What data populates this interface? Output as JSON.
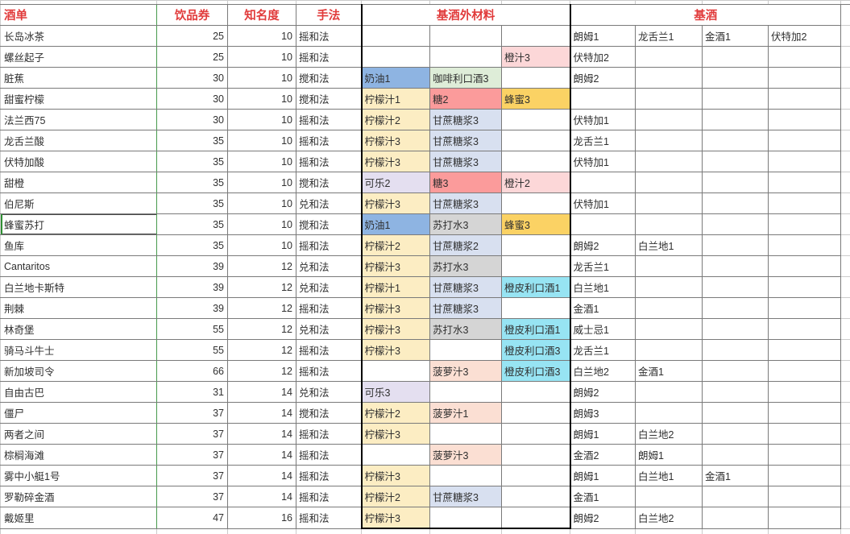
{
  "header": {
    "menu": "酒单",
    "ticket": "饮品券",
    "fame": "知名度",
    "method": "手法",
    "materials": "基酒外材料",
    "base": "基酒"
  },
  "styles": {
    "header_text_color": "#E13B3B",
    "grid_color": "#7a7a7a",
    "sheet_grid_color": "#cbcbcb",
    "green_divider_color": "#469A4C",
    "thick_border_color": "#000000",
    "selection_color": "#2F8F33"
  },
  "material_colors": {
    "lemon_juice": "#FCEDC3",
    "sugar": "#FB9B9B",
    "honey": "#FBD264",
    "cream": "#8EB4E2",
    "coffee_liqueur": "#DEEDD8",
    "orange_juice": "#FCD7D8",
    "cane_syrup": "#D8E0F0",
    "cola": "#E4DFF0",
    "soda_water": "#D5D5D5",
    "orange_liqueur": "#97E4F3",
    "pineapple_juice": "#FBDFD3"
  },
  "selection": {
    "row_index": 9,
    "column": "name"
  },
  "rows": [
    {
      "name": "长岛冰茶",
      "ticket": "25",
      "fame": "10",
      "method": "摇和法",
      "materials": [
        null,
        null,
        null
      ],
      "base": [
        "朗姆1",
        "龙舌兰1",
        "金酒1",
        "伏特加2"
      ]
    },
    {
      "name": "螺丝起子",
      "ticket": "25",
      "fame": "10",
      "method": "摇和法",
      "materials": [
        null,
        null,
        {
          "t": "橙汁3",
          "k": "orange_juice"
        }
      ],
      "base": [
        "伏特加2",
        "",
        "",
        ""
      ]
    },
    {
      "name": "脏蕉",
      "ticket": "30",
      "fame": "10",
      "method": "搅和法",
      "materials": [
        {
          "t": "奶油1",
          "k": "cream"
        },
        {
          "t": "咖啡利口酒3",
          "k": "coffee_liqueur"
        },
        null
      ],
      "base": [
        "朗姆2",
        "",
        "",
        ""
      ]
    },
    {
      "name": "甜蜜柠檬",
      "ticket": "30",
      "fame": "10",
      "method": "搅和法",
      "materials": [
        {
          "t": "柠檬汁1",
          "k": "lemon_juice"
        },
        {
          "t": "糖2",
          "k": "sugar"
        },
        {
          "t": "蜂蜜3",
          "k": "honey"
        }
      ],
      "base": [
        "",
        "",
        "",
        ""
      ]
    },
    {
      "name": "法兰西75",
      "ticket": "30",
      "fame": "10",
      "method": "摇和法",
      "materials": [
        {
          "t": "柠檬汁2",
          "k": "lemon_juice"
        },
        {
          "t": "甘蔗糖浆3",
          "k": "cane_syrup"
        },
        null
      ],
      "base": [
        "伏特加1",
        "",
        "",
        ""
      ]
    },
    {
      "name": "龙舌兰酸",
      "ticket": "35",
      "fame": "10",
      "method": "摇和法",
      "materials": [
        {
          "t": "柠檬汁3",
          "k": "lemon_juice"
        },
        {
          "t": "甘蔗糖浆3",
          "k": "cane_syrup"
        },
        null
      ],
      "base": [
        "龙舌兰1",
        "",
        "",
        ""
      ]
    },
    {
      "name": "伏特加酸",
      "ticket": "35",
      "fame": "10",
      "method": "摇和法",
      "materials": [
        {
          "t": "柠檬汁3",
          "k": "lemon_juice"
        },
        {
          "t": "甘蔗糖浆3",
          "k": "cane_syrup"
        },
        null
      ],
      "base": [
        "伏特加1",
        "",
        "",
        ""
      ]
    },
    {
      "name": "甜橙",
      "ticket": "35",
      "fame": "10",
      "method": "搅和法",
      "materials": [
        {
          "t": "可乐2",
          "k": "cola"
        },
        {
          "t": "糖3",
          "k": "sugar"
        },
        {
          "t": "橙汁2",
          "k": "orange_juice"
        }
      ],
      "base": [
        "",
        "",
        "",
        ""
      ]
    },
    {
      "name": "伯尼斯",
      "ticket": "35",
      "fame": "10",
      "method": "兑和法",
      "materials": [
        {
          "t": "柠檬汁3",
          "k": "lemon_juice"
        },
        {
          "t": "甘蔗糖浆3",
          "k": "cane_syrup"
        },
        null
      ],
      "base": [
        "伏特加1",
        "",
        "",
        ""
      ]
    },
    {
      "name": "蜂蜜苏打",
      "ticket": "35",
      "fame": "10",
      "method": "搅和法",
      "materials": [
        {
          "t": "奶油1",
          "k": "cream"
        },
        {
          "t": "苏打水3",
          "k": "soda_water"
        },
        {
          "t": "蜂蜜3",
          "k": "honey"
        }
      ],
      "base": [
        "",
        "",
        "",
        ""
      ]
    },
    {
      "name": "鱼库",
      "ticket": "35",
      "fame": "10",
      "method": "摇和法",
      "materials": [
        {
          "t": "柠檬汁2",
          "k": "lemon_juice"
        },
        {
          "t": "甘蔗糖浆2",
          "k": "cane_syrup"
        },
        null
      ],
      "base": [
        "朗姆2",
        "白兰地1",
        "",
        ""
      ]
    },
    {
      "name": "Cantaritos",
      "ticket": "39",
      "fame": "12",
      "method": "兑和法",
      "materials": [
        {
          "t": "柠檬汁3",
          "k": "lemon_juice"
        },
        {
          "t": "苏打水3",
          "k": "soda_water"
        },
        null
      ],
      "base": [
        "龙舌兰1",
        "",
        "",
        ""
      ]
    },
    {
      "name": "白兰地卡斯特",
      "ticket": "39",
      "fame": "12",
      "method": "兑和法",
      "materials": [
        {
          "t": "柠檬汁1",
          "k": "lemon_juice"
        },
        {
          "t": "甘蔗糖浆3",
          "k": "cane_syrup"
        },
        {
          "t": "橙皮利口酒1",
          "k": "orange_liqueur"
        }
      ],
      "base": [
        "白兰地1",
        "",
        "",
        ""
      ]
    },
    {
      "name": "荆棘",
      "ticket": "39",
      "fame": "12",
      "method": "摇和法",
      "materials": [
        {
          "t": "柠檬汁3",
          "k": "lemon_juice"
        },
        {
          "t": "甘蔗糖浆3",
          "k": "cane_syrup"
        },
        null
      ],
      "base": [
        "金酒1",
        "",
        "",
        ""
      ]
    },
    {
      "name": "林奇堡",
      "ticket": "55",
      "fame": "12",
      "method": "兑和法",
      "materials": [
        {
          "t": "柠檬汁3",
          "k": "lemon_juice"
        },
        {
          "t": "苏打水3",
          "k": "soda_water"
        },
        {
          "t": "橙皮利口酒1",
          "k": "orange_liqueur"
        }
      ],
      "base": [
        "威士忌1",
        "",
        "",
        ""
      ]
    },
    {
      "name": "骑马斗牛士",
      "ticket": "55",
      "fame": "12",
      "method": "摇和法",
      "materials": [
        {
          "t": "柠檬汁3",
          "k": "lemon_juice"
        },
        null,
        {
          "t": "橙皮利口酒3",
          "k": "orange_liqueur"
        }
      ],
      "base": [
        "龙舌兰1",
        "",
        "",
        ""
      ]
    },
    {
      "name": "新加坡司令",
      "ticket": "66",
      "fame": "12",
      "method": "摇和法",
      "materials": [
        null,
        {
          "t": "菠萝汁3",
          "k": "pineapple_juice"
        },
        {
          "t": "橙皮利口酒3",
          "k": "orange_liqueur"
        }
      ],
      "base": [
        "白兰地2",
        "金酒1",
        "",
        ""
      ]
    },
    {
      "name": "自由古巴",
      "ticket": "31",
      "fame": "14",
      "method": "兑和法",
      "materials": [
        {
          "t": "可乐3",
          "k": "cola"
        },
        null,
        null
      ],
      "base": [
        "朗姆2",
        "",
        "",
        ""
      ]
    },
    {
      "name": "僵尸",
      "ticket": "37",
      "fame": "14",
      "method": "搅和法",
      "materials": [
        {
          "t": "柠檬汁2",
          "k": "lemon_juice"
        },
        {
          "t": "菠萝汁1",
          "k": "pineapple_juice"
        },
        null
      ],
      "base": [
        "朗姆3",
        "",
        "",
        ""
      ]
    },
    {
      "name": "两者之间",
      "ticket": "37",
      "fame": "14",
      "method": "摇和法",
      "materials": [
        {
          "t": "柠檬汁3",
          "k": "lemon_juice"
        },
        null,
        null
      ],
      "base": [
        "朗姆1",
        "白兰地2",
        "",
        ""
      ]
    },
    {
      "name": "棕榈海滩",
      "ticket": "37",
      "fame": "14",
      "method": "摇和法",
      "materials": [
        null,
        {
          "t": "菠萝汁3",
          "k": "pineapple_juice"
        },
        null
      ],
      "base": [
        "金酒2",
        "朗姆1",
        "",
        ""
      ]
    },
    {
      "name": "雾中小艇1号",
      "ticket": "37",
      "fame": "14",
      "method": "摇和法",
      "materials": [
        {
          "t": "柠檬汁3",
          "k": "lemon_juice"
        },
        null,
        null
      ],
      "base": [
        "朗姆1",
        "白兰地1",
        "金酒1",
        ""
      ]
    },
    {
      "name": "罗勒碎金酒",
      "ticket": "37",
      "fame": "14",
      "method": "摇和法",
      "materials": [
        {
          "t": "柠檬汁2",
          "k": "lemon_juice"
        },
        {
          "t": "甘蔗糖浆3",
          "k": "cane_syrup"
        },
        null
      ],
      "base": [
        "金酒1",
        "",
        "",
        ""
      ]
    },
    {
      "name": "戴姬里",
      "ticket": "47",
      "fame": "16",
      "method": "摇和法",
      "materials": [
        {
          "t": "柠檬汁3",
          "k": "lemon_juice"
        },
        null,
        null
      ],
      "base": [
        "朗姆2",
        "白兰地2",
        "",
        ""
      ]
    }
  ]
}
